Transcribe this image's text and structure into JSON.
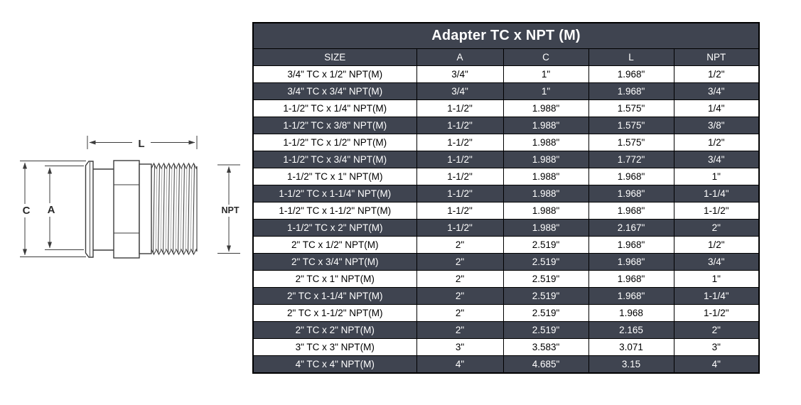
{
  "diagram": {
    "labels": {
      "length": "L",
      "outer_diameter": "C",
      "inner_diameter": "A",
      "thread": "NPT"
    }
  },
  "table": {
    "title": "Adapter TC x NPT (M)",
    "columns": [
      "SIZE",
      "A",
      "C",
      "L",
      "NPT"
    ],
    "rows": [
      [
        "3/4\" TC x 1/2\" NPT(M)",
        "3/4\"",
        "1\"",
        "1.968\"",
        "1/2\""
      ],
      [
        "3/4\" TC x 3/4\" NPT(M)",
        "3/4\"",
        "1\"",
        "1.968\"",
        "3/4\""
      ],
      [
        "1-1/2\" TC x 1/4\" NPT(M)",
        "1-1/2\"",
        "1.988\"",
        "1.575\"",
        "1/4\""
      ],
      [
        "1-1/2\" TC x 3/8\" NPT(M)",
        "1-1/2\"",
        "1.988\"",
        "1.575\"",
        "3/8\""
      ],
      [
        "1-1/2\" TC x 1/2\" NPT(M)",
        "1-1/2\"",
        "1.988\"",
        "1.575\"",
        "1/2\""
      ],
      [
        "1-1/2\" TC x 3/4\" NPT(M)",
        "1-1/2\"",
        "1.988\"",
        "1.772\"",
        "3/4\""
      ],
      [
        "1-1/2\" TC x 1\" NPT(M)",
        "1-1/2\"",
        "1.988\"",
        "1.968\"",
        "1\""
      ],
      [
        "1-1/2\" TC x 1-1/4\" NPT(M)",
        "1-1/2\"",
        "1.988\"",
        "1.968\"",
        "1-1/4\""
      ],
      [
        "1-1/2\" TC x 1-1/2\" NPT(M)",
        "1-1/2\"",
        "1.988\"",
        "1.968\"",
        "1-1/2\""
      ],
      [
        "1-1/2\" TC x 2\" NPT(M)",
        "1-1/2\"",
        "1.988\"",
        "2.167\"",
        "2\""
      ],
      [
        "2\" TC x 1/2\" NPT(M)",
        "2\"",
        "2.519\"",
        "1.968\"",
        "1/2\""
      ],
      [
        "2\" TC x 3/4\" NPT(M)",
        "2\"",
        "2.519\"",
        "1.968\"",
        "3/4\""
      ],
      [
        "2\" TC x 1\" NPT(M)",
        "2\"",
        "2.519\"",
        "1.968\"",
        "1\""
      ],
      [
        "2\" TC x 1-1/4\" NPT(M)",
        "2\"",
        "2.519\"",
        "1.968\"",
        "1-1/4\""
      ],
      [
        "2\" TC x 1-1/2\" NPT(M)",
        "2\"",
        "2.519\"",
        "1.968",
        "1-1/2\""
      ],
      [
        "2\" TC x 2\" NPT(M)",
        "2\"",
        "2.519\"",
        "2.165",
        "2\""
      ],
      [
        "3\" TC x 3\" NPT(M)",
        "3\"",
        "3.583\"",
        "3.071",
        "3\""
      ],
      [
        "4\" TC x 4\" NPT(M)",
        "4\"",
        "4.685\"",
        "3.15",
        "4\""
      ]
    ]
  },
  "colors": {
    "page_bg": "#FFFFFF",
    "header_bg": "#3F4450",
    "row_alt_bg": "#3F4450",
    "row_bg": "#FFFFFF",
    "header_text": "#FFFFFF",
    "body_text": "#000000",
    "border_color": "#000000"
  }
}
